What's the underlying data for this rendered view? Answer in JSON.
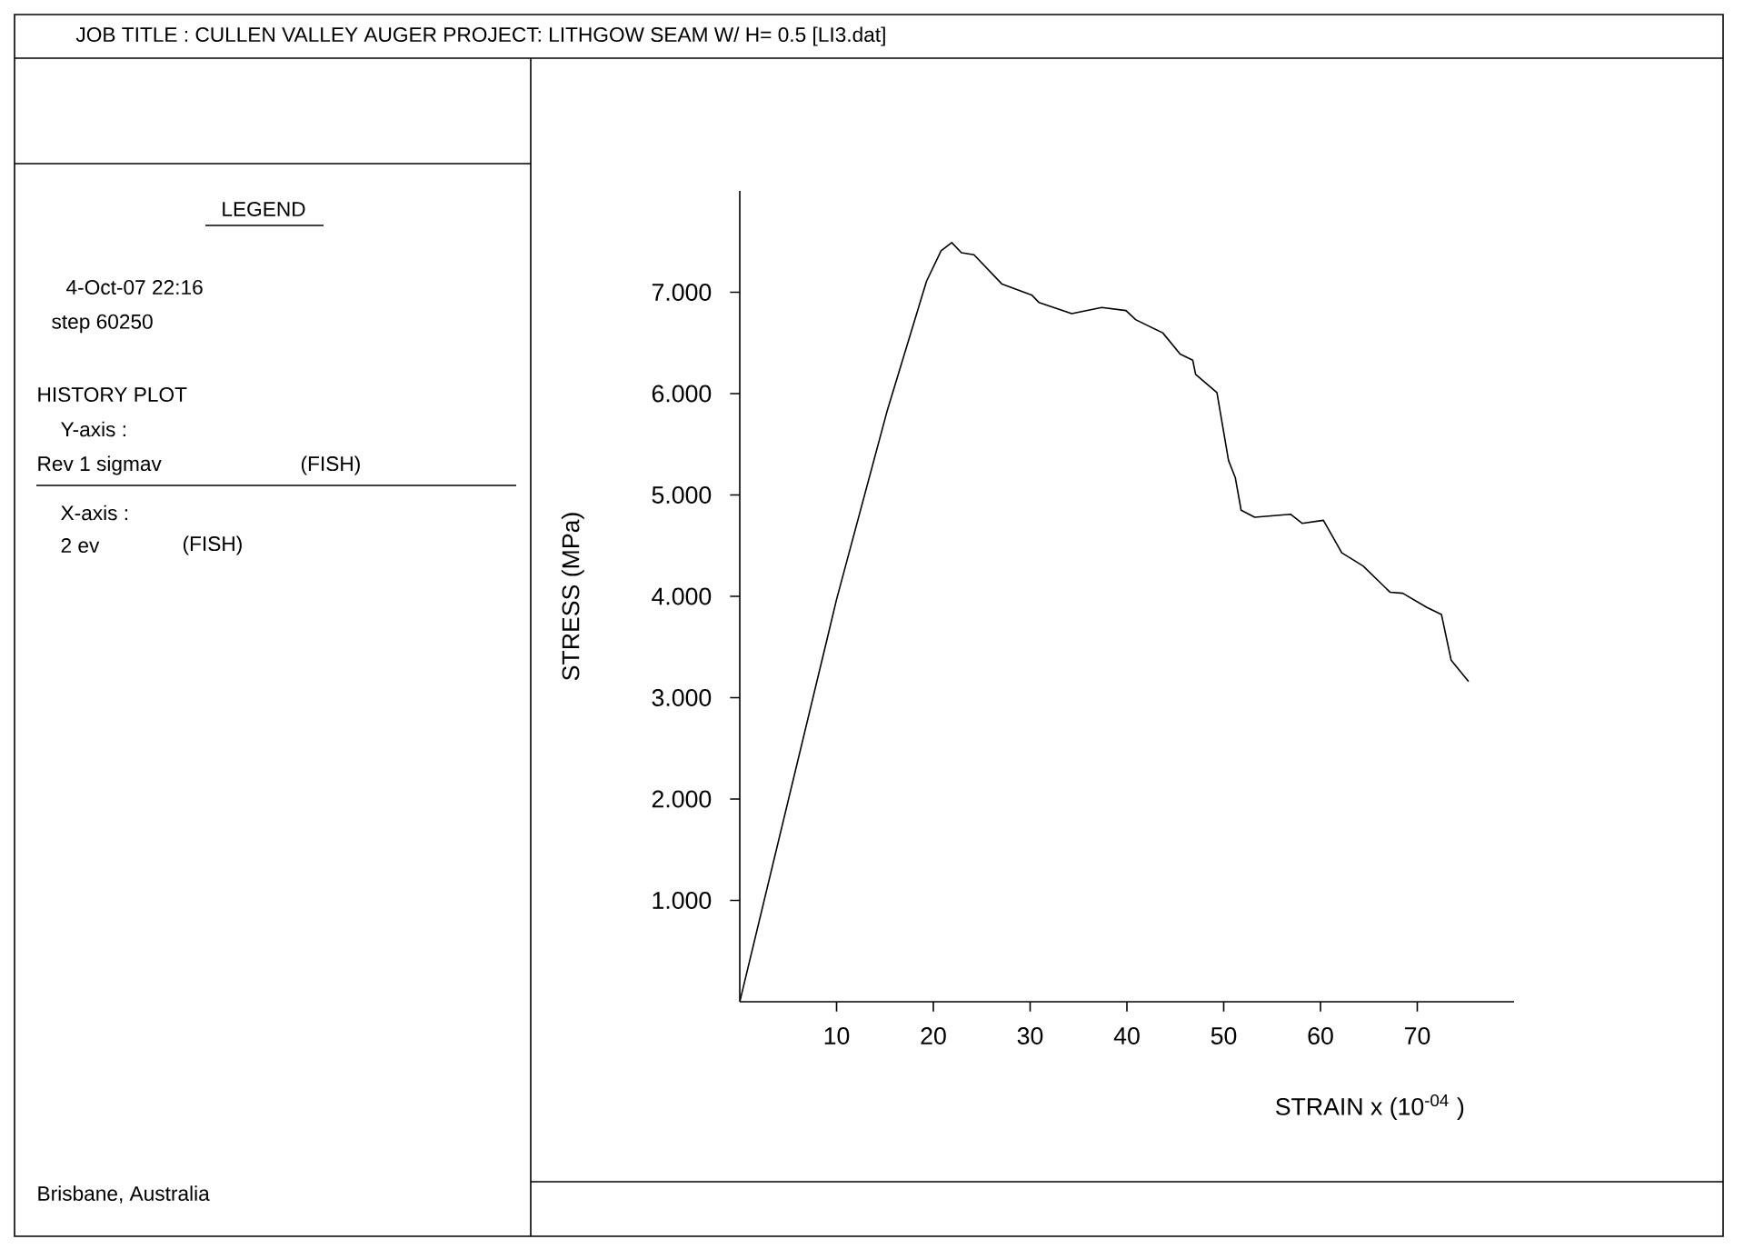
{
  "chart_data": {
    "type": "line",
    "title": "JOB TITLE :   CULLEN VALLEY AUGER PROJECT: LITHGOW SEAM  W/ H= 0.5  [LI3.dat]",
    "xlabel": "STRAIN  x  (10$^{-04}$ )",
    "ylabel": "STRESS  (MPa)",
    "color": "#000000",
    "x": [
      0,
      9.1,
      10.0,
      15.2,
      19.3,
      20.8,
      21.9,
      22.9,
      24.2,
      27.1,
      30.2,
      30.9,
      34.3,
      37.4,
      39.9,
      40.9,
      43.7,
      45.5,
      46.8,
      47.1,
      49.3,
      50.5,
      51.2,
      51.8,
      53.2,
      56.9,
      58.1,
      60.3,
      62.2,
      64.4,
      67.2,
      68.5,
      71.0,
      72.5,
      73.5,
      75.3
    ],
    "values": [
      0,
      3.61,
      3.97,
      5.82,
      7.11,
      7.41,
      7.49,
      7.39,
      7.37,
      7.08,
      6.97,
      6.9,
      6.79,
      6.85,
      6.82,
      6.73,
      6.6,
      6.39,
      6.33,
      6.19,
      6.01,
      5.34,
      5.17,
      4.85,
      4.78,
      4.81,
      4.72,
      4.75,
      4.43,
      4.3,
      4.04,
      4.03,
      3.89,
      3.82,
      3.37,
      3.16
    ],
    "xlim": [
      0,
      80
    ],
    "ylim": [
      0,
      8
    ],
    "xticks": [
      10,
      20,
      30,
      40,
      50,
      60,
      70
    ],
    "yticks": [
      {
        "value": 1,
        "label": "1.000"
      },
      {
        "value": 2,
        "label": "2.000"
      },
      {
        "value": 3,
        "label": "3.000"
      },
      {
        "value": 4,
        "label": "4.000"
      },
      {
        "value": 5,
        "label": "5.000"
      },
      {
        "value": 6,
        "label": "6.000"
      },
      {
        "value": 7,
        "label": "7.000"
      }
    ],
    "annotations": [
      "LEGEND",
      "4-Oct-07  22:16",
      "step  60250",
      "HISTORY PLOT",
      "Y-axis :",
      "Rev  1 sigmav",
      "(FISH)",
      "X-axis :",
      "2  ev",
      "(FISH)",
      "Brisbane, Australia"
    ]
  }
}
